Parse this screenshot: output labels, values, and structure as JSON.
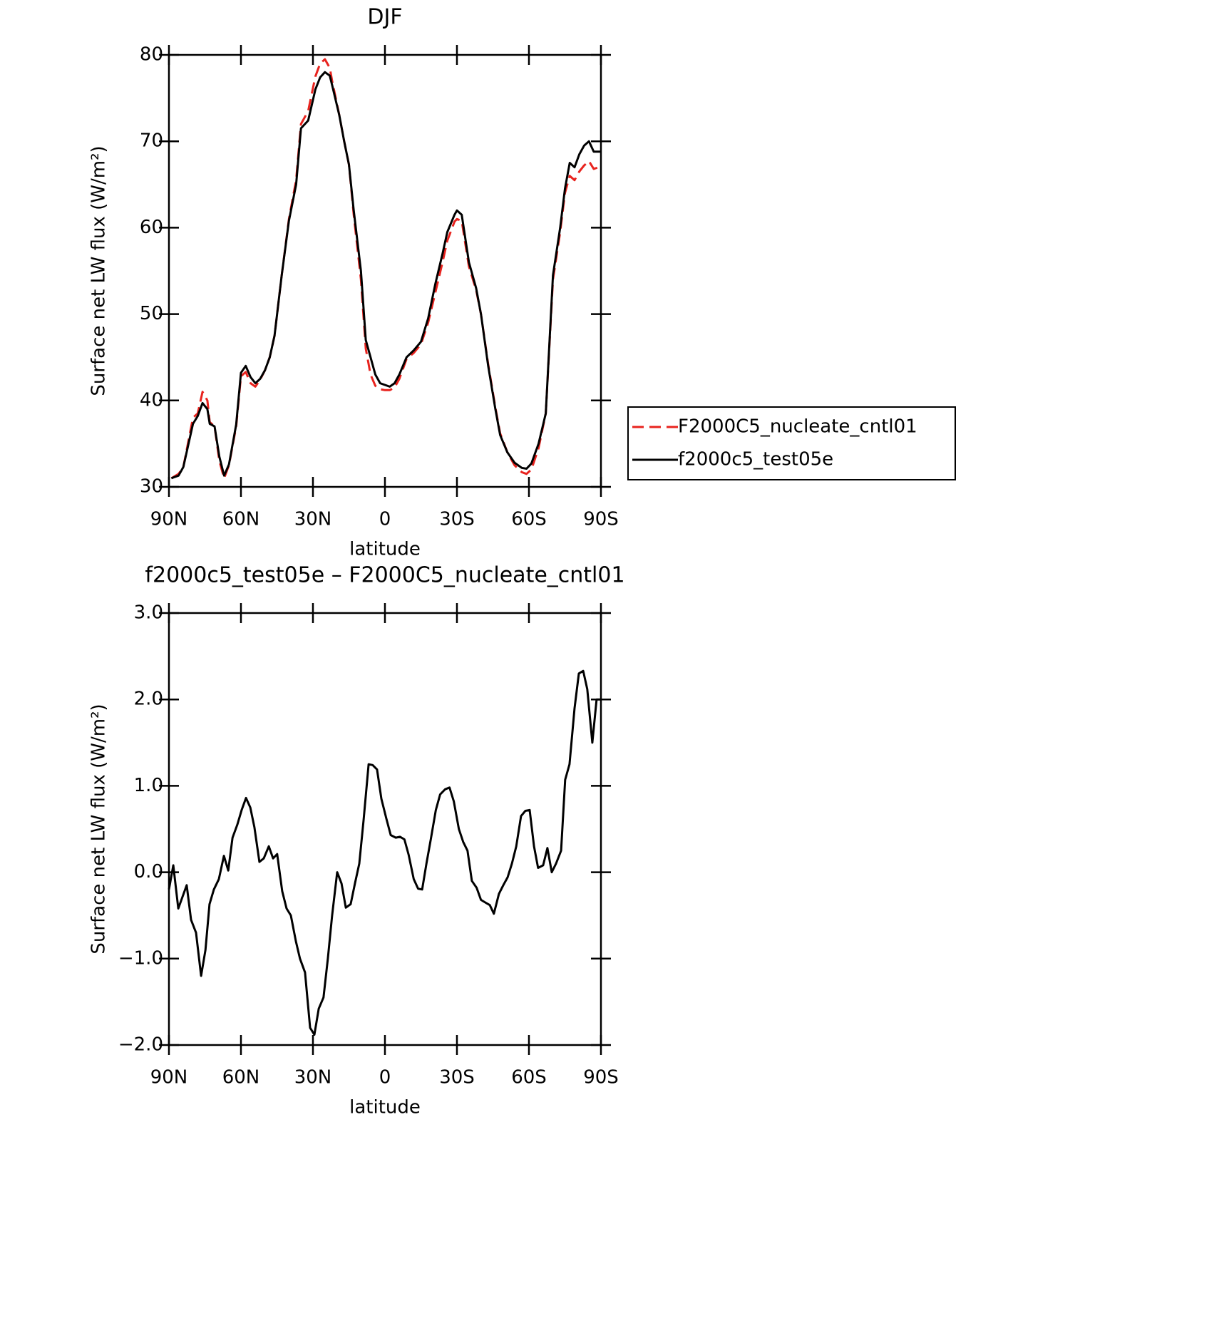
{
  "chart_data": [
    {
      "type": "line",
      "title": "DJF",
      "xlabel": "latitude",
      "ylabel": "Surface net LW flux (W/m²)",
      "xlim": [
        90,
        -90
      ],
      "xticks": [
        {
          "value": 90,
          "label": "90N"
        },
        {
          "value": 60,
          "label": "60N"
        },
        {
          "value": 30,
          "label": "30N"
        },
        0,
        {
          "value": -30,
          "label": "30S"
        },
        {
          "value": -60,
          "label": "60S"
        },
        {
          "value": -90,
          "label": "90S"
        }
      ],
      "ylim": [
        30,
        80
      ],
      "yticks": [
        30,
        40,
        50,
        60,
        70,
        80
      ],
      "legend": "right",
      "x": [
        89,
        86,
        84,
        80,
        78,
        76,
        74,
        73,
        71,
        69,
        67,
        65,
        62,
        60,
        58,
        56,
        54,
        52,
        50,
        48,
        46,
        43,
        40,
        37,
        35,
        32,
        29,
        27,
        25,
        23,
        22,
        19,
        17,
        15,
        13,
        10,
        8,
        6,
        4,
        2,
        0,
        -2,
        -4,
        -6,
        -9,
        -12,
        -15,
        -18,
        -21,
        -24,
        -26,
        -29,
        -30,
        -32,
        -35,
        -38,
        -40,
        -43,
        -46,
        -48,
        -51,
        -54,
        -57,
        -59,
        -61,
        -64,
        -67,
        -70,
        -73,
        -75,
        -77,
        -79,
        -81,
        -83,
        -85,
        -87,
        -89,
        -90
      ],
      "series": [
        {
          "name": "F2000C5_nucleate_cntl01",
          "color": "#e8231e",
          "line_style": "dashed",
          "values": [
            31.0,
            31.5,
            32.3,
            38.0,
            38.5,
            41.0,
            40.0,
            37.5,
            37.0,
            33.0,
            31.0,
            32.5,
            37.0,
            42.8,
            43.3,
            42.0,
            41.6,
            42.4,
            43.5,
            45.0,
            47.5,
            54.5,
            61.0,
            65.5,
            72.0,
            73.5,
            77.5,
            79.0,
            79.5,
            78.5,
            77.0,
            73.0,
            70.0,
            67.3,
            61.5,
            54.0,
            46.0,
            43.0,
            41.7,
            41.3,
            41.2,
            41.2,
            41.5,
            42.5,
            44.8,
            45.5,
            46.5,
            49.0,
            52.5,
            56.0,
            58.5,
            60.7,
            61.0,
            60.8,
            55.5,
            52.8,
            50.0,
            44.2,
            39.2,
            36.2,
            34.0,
            32.5,
            31.7,
            31.5,
            32.0,
            34.5,
            38.5,
            54.0,
            59.5,
            64.0,
            66.0,
            65.5,
            66.5,
            67.2,
            67.7,
            66.8,
            67.0,
            66.8
          ]
        },
        {
          "name": "f2000c5_test05e",
          "color": "#000000",
          "line_style": "solid",
          "values": [
            31.0,
            31.3,
            32.3,
            37.3,
            38.2,
            39.7,
            39.0,
            37.3,
            37.0,
            33.5,
            31.3,
            32.6,
            37.2,
            43.2,
            44.0,
            42.7,
            42.0,
            42.5,
            43.5,
            45.0,
            47.5,
            54.5,
            60.8,
            65.0,
            71.5,
            72.4,
            76.0,
            77.4,
            78.0,
            77.6,
            76.5,
            73.0,
            70.0,
            67.3,
            62.0,
            55.0,
            47.0,
            45.0,
            43.0,
            42.0,
            41.8,
            41.6,
            42.0,
            43.0,
            45.0,
            45.8,
            46.8,
            49.5,
            53.5,
            57.0,
            59.5,
            61.5,
            62.0,
            61.5,
            56.0,
            53.0,
            50.0,
            44.0,
            39.0,
            36.0,
            34.0,
            32.8,
            32.2,
            32.1,
            32.7,
            35.0,
            38.5,
            54.5,
            60.0,
            64.5,
            67.5,
            67.0,
            68.5,
            69.5,
            70.0,
            68.8,
            68.8,
            68.8
          ]
        }
      ]
    },
    {
      "type": "line",
      "title": "f2000c5_test05e – F2000C5_nucleate_cntl01",
      "xlabel": "latitude",
      "ylabel": "Surface net LW flux (W/m²)",
      "xlim": [
        90,
        -90
      ],
      "xticks": [
        {
          "value": 90,
          "label": "90N"
        },
        {
          "value": 60,
          "label": "60N"
        },
        {
          "value": 30,
          "label": "30N"
        },
        0,
        {
          "value": -30,
          "label": "30S"
        },
        {
          "value": -60,
          "label": "60S"
        },
        {
          "value": -90,
          "label": "90S"
        }
      ],
      "ylim": [
        -2,
        3
      ],
      "yticks": [
        {
          "value": -2,
          "label": "−2.0"
        },
        {
          "value": -1,
          "label": "−1.0"
        },
        {
          "value": 0,
          "label": "0.0"
        },
        {
          "value": 1,
          "label": "1.0"
        },
        {
          "value": 2,
          "label": "2.0"
        },
        {
          "value": 3,
          "label": "3.0"
        }
      ],
      "color": "#000000",
      "x": [
        90.0,
        88.2,
        86.1,
        82.6,
        80.8,
        78.7,
        76.6,
        74.8,
        73.1,
        71.3,
        69.2,
        67.1,
        65.3,
        63.5,
        61.5,
        59.7,
        57.9,
        56.1,
        54.4,
        52.3,
        50.5,
        48.4,
        46.6,
        44.9,
        42.8,
        41.0,
        39.2,
        37.1,
        35.4,
        33.3,
        31.2,
        29.4,
        27.6,
        25.6,
        23.8,
        22.0,
        19.9,
        18.1,
        16.3,
        14.3,
        12.5,
        10.7,
        8.9,
        6.8,
        5.1,
        3.3,
        1.5,
        -0.6,
        -2.4,
        -4.5,
        -6.3,
        -8.1,
        -9.9,
        -12.0,
        -13.8,
        -15.5,
        -17.3,
        -19.1,
        -21.2,
        -23.0,
        -25.1,
        -26.9,
        -28.7,
        -30.8,
        -32.6,
        -34.4,
        -36.2,
        -38.2,
        -40.0,
        -41.8,
        -43.7,
        -45.4,
        -47.5,
        -49.3,
        -51.1,
        -52.9,
        -54.7,
        -56.7,
        -58.5,
        -60.3,
        -62.1,
        -63.8,
        -65.9,
        -67.7,
        -69.5,
        -71.3,
        -73.4,
        -75.1,
        -76.9,
        -79.0,
        -80.8,
        -82.6,
        -84.3,
        -86.4,
        -88.2,
        -90.0
      ],
      "values": [
        -0.2,
        0.08,
        -0.42,
        -0.15,
        -0.55,
        -0.7,
        -1.2,
        -0.9,
        -0.37,
        -0.2,
        -0.08,
        0.19,
        0.02,
        0.4,
        0.55,
        0.72,
        0.86,
        0.75,
        0.52,
        0.12,
        0.16,
        0.3,
        0.16,
        0.21,
        -0.22,
        -0.42,
        -0.5,
        -0.8,
        -1.0,
        -1.16,
        -1.8,
        -1.88,
        -1.58,
        -1.45,
        -1.0,
        -0.5,
        0.0,
        -0.13,
        -0.41,
        -0.37,
        -0.13,
        0.1,
        0.6,
        1.25,
        1.24,
        1.19,
        0.85,
        0.62,
        0.43,
        0.4,
        0.41,
        0.38,
        0.2,
        -0.08,
        -0.19,
        -0.2,
        0.1,
        0.38,
        0.72,
        0.9,
        0.96,
        0.98,
        0.82,
        0.5,
        0.35,
        0.25,
        -0.1,
        -0.18,
        -0.32,
        -0.35,
        -0.38,
        -0.48,
        -0.25,
        -0.15,
        -0.06,
        0.1,
        0.3,
        0.65,
        0.71,
        0.72,
        0.3,
        0.05,
        0.08,
        0.28,
        0.0,
        0.1,
        0.25,
        1.07,
        1.25,
        1.9,
        2.3,
        2.33,
        2.12,
        1.5,
        2.0,
        2.0
      ]
    }
  ]
}
